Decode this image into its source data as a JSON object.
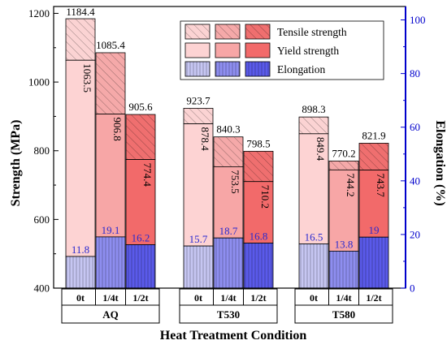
{
  "chart_data": {
    "type": "bar",
    "title": "",
    "xlabel": "Heat Treatment Condition",
    "ylabel": "Strength (MPa)",
    "y2label": "Elongation (%)",
    "ylim": [
      400,
      1220
    ],
    "y2lim": [
      0,
      105
    ],
    "yticks": [
      400,
      600,
      800,
      1000,
      1200
    ],
    "y2ticks": [
      0,
      20,
      40,
      60,
      80,
      100
    ],
    "legend_position": "top-right",
    "legend": [
      "Tensile strength",
      "Yield strength",
      "Elongation"
    ],
    "groups": [
      "AQ",
      "T530",
      "T580"
    ],
    "categories": [
      "0t",
      "1/4t",
      "1/2t"
    ],
    "series": [
      {
        "name": "Tensile strength",
        "values": [
          [
            1184.4,
            1085.4,
            905.6
          ],
          [
            923.7,
            840.3,
            798.5
          ],
          [
            898.3,
            770.2,
            821.9
          ]
        ],
        "labels": [
          [
            "1184.4",
            "1085.4",
            "905.6"
          ],
          [
            "923.7",
            "840.3",
            "798.5"
          ],
          [
            "898.3",
            "770.2",
            "821.9"
          ]
        ]
      },
      {
        "name": "Yield strength",
        "values": [
          [
            1063.5,
            906.8,
            774.4
          ],
          [
            878.4,
            753.5,
            710.2
          ],
          [
            849.4,
            744.2,
            743.7
          ]
        ],
        "labels": [
          [
            "1063.5",
            "906.8",
            "774.4"
          ],
          [
            "878.4",
            "753.5",
            "710.2"
          ],
          [
            "849.4",
            "744.2",
            "743.7"
          ]
        ]
      },
      {
        "name": "Elongation",
        "axis": "right",
        "values": [
          [
            11.8,
            19.1,
            16.2
          ],
          [
            15.7,
            18.7,
            16.8
          ],
          [
            16.5,
            13.8,
            19
          ]
        ],
        "labels": [
          [
            "11.8",
            "19.1",
            "16.2"
          ],
          [
            "15.7",
            "18.7",
            "16.8"
          ],
          [
            "16.5",
            "13.8",
            "19"
          ]
        ]
      }
    ],
    "colors": {
      "tensile": [
        "#fbd3d3",
        "#f5a9a9",
        "#ef6f6f"
      ],
      "yield": [
        "#fdd3d3",
        "#f7a6a6",
        "#f26a6a"
      ],
      "elongation": [
        "#c6c6f2",
        "#8e8ef0",
        "#5a5aea"
      ],
      "right_axis": "#0000cc",
      "elong_label": "#2a2ad0"
    }
  }
}
